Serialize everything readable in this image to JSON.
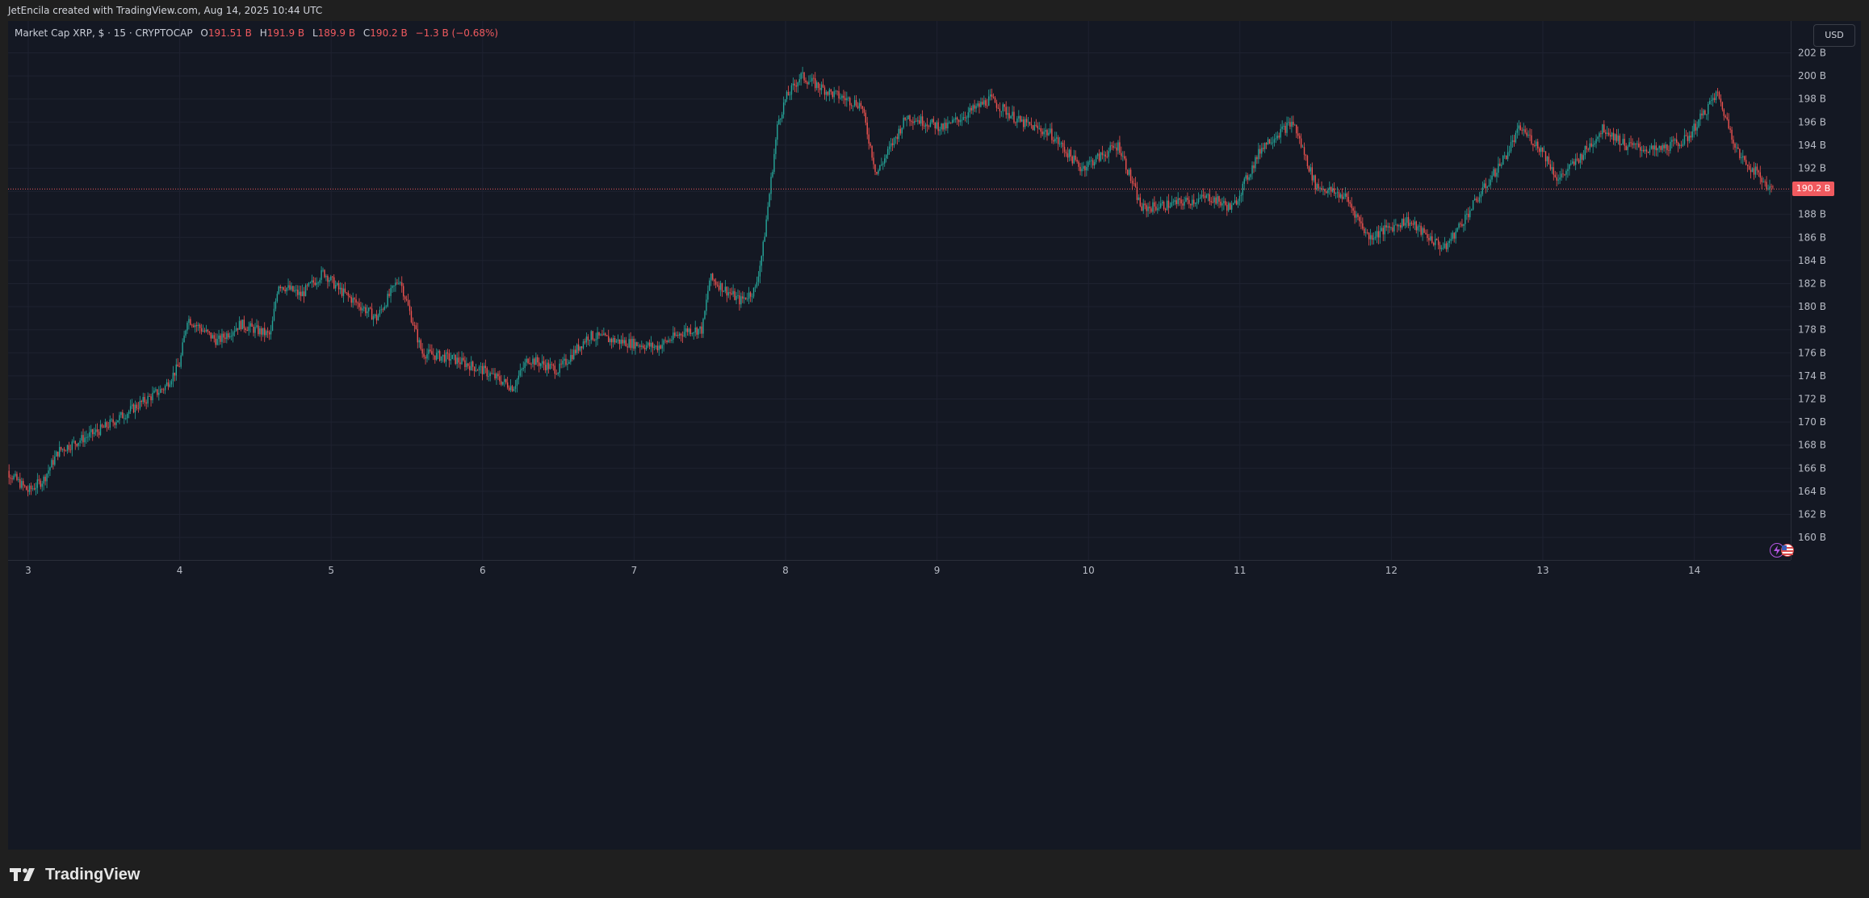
{
  "header": {
    "credit": "JetEncila created with TradingView.com, Aug 14, 2025 10:44 UTC"
  },
  "legend": {
    "symbol": "Market Cap XRP, $ · 15 · CRYPTOCAP",
    "o_label": "O",
    "o_value": "191.51 B",
    "h_label": "H",
    "h_value": "191.9 B",
    "l_label": "L",
    "l_value": "189.9 B",
    "c_label": "C",
    "c_value": "190.2 B",
    "change": "−1.3 B (−0.68%)"
  },
  "currency_button": "USD",
  "price_tag": "190.2 B",
  "footer": {
    "brand": "TradingView"
  },
  "icons": {
    "bolt": "bolt-icon",
    "flag": "us-flag-icon",
    "logo": "tradingview-logo-icon"
  },
  "colors": {
    "up": "#26a69a",
    "down": "#ef5350",
    "background": "#141823",
    "last_price": "#f05a5f"
  },
  "chart_data": {
    "type": "candlestick",
    "interval": "15",
    "ylim": [
      158,
      204
    ],
    "y_ticks": [
      160,
      162,
      164,
      166,
      168,
      170,
      172,
      174,
      176,
      178,
      180,
      182,
      184,
      186,
      188,
      190,
      192,
      194,
      196,
      198,
      200,
      202
    ],
    "y_tick_suffix": " B",
    "x_ticks": [
      "3",
      "4",
      "5",
      "6",
      "7",
      "8",
      "9",
      "10",
      "11",
      "12",
      "13",
      "14"
    ],
    "x_range_days": [
      2.8,
      14.52
    ],
    "last_price": 190.2,
    "grid": true,
    "approx_close_path": [
      {
        "day": 2.8,
        "close": 166.5
      },
      {
        "day": 3.0,
        "close": 164.0
      },
      {
        "day": 3.1,
        "close": 165.0
      },
      {
        "day": 3.2,
        "close": 167.5
      },
      {
        "day": 3.5,
        "close": 169.5
      },
      {
        "day": 3.9,
        "close": 173.0
      },
      {
        "day": 4.0,
        "close": 175.0
      },
      {
        "day": 4.05,
        "close": 179.0
      },
      {
        "day": 4.25,
        "close": 177.0
      },
      {
        "day": 4.4,
        "close": 178.5
      },
      {
        "day": 4.6,
        "close": 177.5
      },
      {
        "day": 4.65,
        "close": 182.0
      },
      {
        "day": 4.8,
        "close": 181.0
      },
      {
        "day": 4.95,
        "close": 183.0
      },
      {
        "day": 5.05,
        "close": 181.5
      },
      {
        "day": 5.3,
        "close": 179.0
      },
      {
        "day": 5.45,
        "close": 182.5
      },
      {
        "day": 5.6,
        "close": 176.0
      },
      {
        "day": 5.8,
        "close": 175.5
      },
      {
        "day": 6.0,
        "close": 174.5
      },
      {
        "day": 6.2,
        "close": 173.0
      },
      {
        "day": 6.3,
        "close": 175.5
      },
      {
        "day": 6.5,
        "close": 174.5
      },
      {
        "day": 6.7,
        "close": 177.5
      },
      {
        "day": 6.9,
        "close": 177.0
      },
      {
        "day": 7.15,
        "close": 176.5
      },
      {
        "day": 7.35,
        "close": 178.0
      },
      {
        "day": 7.45,
        "close": 178.0
      },
      {
        "day": 7.5,
        "close": 182.5
      },
      {
        "day": 7.7,
        "close": 180.5
      },
      {
        "day": 7.8,
        "close": 181.5
      },
      {
        "day": 7.85,
        "close": 185.0
      },
      {
        "day": 7.95,
        "close": 196.0
      },
      {
        "day": 8.0,
        "close": 198.0
      },
      {
        "day": 8.1,
        "close": 200.0
      },
      {
        "day": 8.3,
        "close": 198.5
      },
      {
        "day": 8.5,
        "close": 197.5
      },
      {
        "day": 8.6,
        "close": 191.5
      },
      {
        "day": 8.8,
        "close": 196.5
      },
      {
        "day": 9.05,
        "close": 195.5
      },
      {
        "day": 9.35,
        "close": 198.0
      },
      {
        "day": 9.55,
        "close": 196.0
      },
      {
        "day": 9.75,
        "close": 195.0
      },
      {
        "day": 9.95,
        "close": 192.0
      },
      {
        "day": 10.2,
        "close": 194.0
      },
      {
        "day": 10.35,
        "close": 188.5
      },
      {
        "day": 10.6,
        "close": 189.0
      },
      {
        "day": 10.8,
        "close": 189.5
      },
      {
        "day": 10.95,
        "close": 188.5
      },
      {
        "day": 11.15,
        "close": 194.0
      },
      {
        "day": 11.35,
        "close": 196.0
      },
      {
        "day": 11.5,
        "close": 190.5
      },
      {
        "day": 11.7,
        "close": 189.5
      },
      {
        "day": 11.85,
        "close": 186.0
      },
      {
        "day": 12.1,
        "close": 187.5
      },
      {
        "day": 12.35,
        "close": 185.0
      },
      {
        "day": 12.55,
        "close": 189.0
      },
      {
        "day": 12.75,
        "close": 193.0
      },
      {
        "day": 12.85,
        "close": 195.5
      },
      {
        "day": 13.0,
        "close": 193.5
      },
      {
        "day": 13.1,
        "close": 191.0
      },
      {
        "day": 13.25,
        "close": 193.0
      },
      {
        "day": 13.4,
        "close": 195.5
      },
      {
        "day": 13.55,
        "close": 194.0
      },
      {
        "day": 13.75,
        "close": 193.5
      },
      {
        "day": 13.95,
        "close": 194.5
      },
      {
        "day": 14.1,
        "close": 197.5
      },
      {
        "day": 14.15,
        "close": 198.5
      },
      {
        "day": 14.3,
        "close": 193.0
      },
      {
        "day": 14.42,
        "close": 191.5
      },
      {
        "day": 14.5,
        "close": 190.2
      }
    ]
  }
}
